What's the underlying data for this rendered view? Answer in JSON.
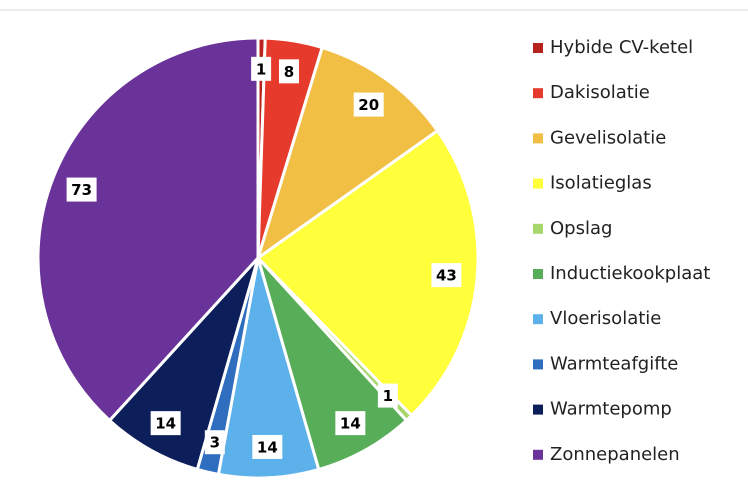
{
  "chart_data": {
    "type": "pie",
    "categories": [
      "Hybide CV-ketel",
      "Dakisolatie",
      "Gevelisolatie",
      "Isolatieglas",
      "Opslag",
      "Inductiekookplaat",
      "Vloerisolatie",
      "Warmteafgifte",
      "Warmtepomp",
      "Zonnepanelen"
    ],
    "values": [
      1,
      8,
      20,
      43,
      1,
      14,
      14,
      3,
      14,
      73
    ],
    "colors": [
      "#b8231f",
      "#e63a2c",
      "#f2bf45",
      "#ffff3c",
      "#a6d66c",
      "#58ad58",
      "#5cb1ea",
      "#2f6ebf",
      "#0d1f5b",
      "#69339a"
    ],
    "legend": "right"
  }
}
